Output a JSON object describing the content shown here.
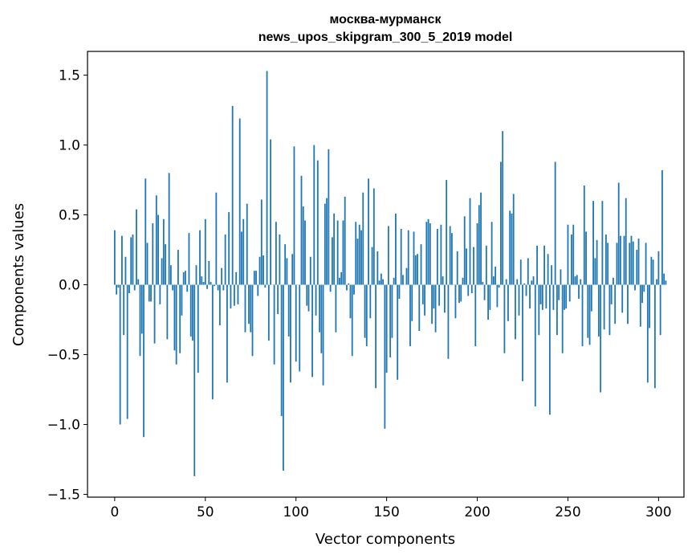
{
  "chart_data": {
    "type": "bar",
    "title_line1": "москва-мурманск",
    "title_line2": "news_upos_skipgram_300_5_2019 model",
    "xlabel": "Vector components",
    "ylabel": "Components values",
    "xlim": [
      -15,
      314
    ],
    "ylim": [
      -1.52,
      1.67
    ],
    "xticks": [
      0,
      50,
      100,
      150,
      200,
      250,
      300
    ],
    "xtick_labels": [
      "0",
      "50",
      "100",
      "150",
      "200",
      "250",
      "300"
    ],
    "yticks": [
      -1.5,
      -1.0,
      -0.5,
      0.0,
      0.5,
      1.0,
      1.5
    ],
    "ytick_labels": [
      "−1.5",
      "−1.0",
      "−0.5",
      "0.0",
      "0.5",
      "1.0",
      "1.5"
    ],
    "bar_color": "#1f77b4",
    "values": [
      0.39,
      -0.07,
      -0.02,
      -1.0,
      0.35,
      -0.36,
      0.2,
      -0.96,
      -0.06,
      0.34,
      0.36,
      -0.04,
      0.54,
      0.04,
      -0.51,
      -0.35,
      -1.09,
      0.76,
      0.3,
      -0.12,
      -0.12,
      0.44,
      -0.42,
      0.64,
      0.5,
      -0.14,
      0.19,
      0.47,
      0.29,
      -0.39,
      0.8,
      0.14,
      -0.04,
      -0.47,
      -0.57,
      0.25,
      -0.49,
      -0.22,
      0.09,
      0.1,
      -0.05,
      0.37,
      -0.37,
      -0.4,
      -1.37,
      0.14,
      -0.63,
      0.39,
      0.06,
      0.02,
      0.47,
      -0.03,
      0.17,
      0.02,
      -0.82,
      -0.01,
      0.66,
      -0.04,
      -0.29,
      0.12,
      -0.04,
      0.36,
      -0.7,
      0.52,
      -0.17,
      1.28,
      -0.15,
      0.09,
      -0.14,
      1.19,
      0.38,
      0.47,
      -0.34,
      0.58,
      -0.28,
      -0.34,
      -0.51,
      0.1,
      0.1,
      -0.08,
      0.2,
      0.61,
      0.21,
      -0.02,
      1.53,
      -0.4,
      1.04,
      0.0,
      -0.57,
      0.45,
      -0.21,
      0.36,
      -0.94,
      -1.33,
      0.29,
      0.19,
      -0.37,
      -0.7,
      0.22,
      0.99,
      -0.55,
      0.0,
      -0.62,
      0.78,
      0.56,
      0.46,
      -0.15,
      -0.19,
      0.2,
      -0.66,
      1.0,
      -0.22,
      0.89,
      -0.34,
      -0.49,
      -0.72,
      0.58,
      0.62,
      0.97,
      -0.05,
      0.34,
      0.51,
      -0.34,
      0.46,
      0.05,
      0.09,
      0.46,
      0.63,
      -0.04,
      0.01,
      -0.24,
      -0.51,
      -0.07,
      0.45,
      0.33,
      0.43,
      0.39,
      0.66,
      -0.38,
      -0.44,
      0.76,
      -0.24,
      0.27,
      0.69,
      -0.74,
      0.24,
      0.03,
      0.08,
      0.04,
      -1.03,
      -0.63,
      0.42,
      -0.52,
      -0.38,
      0.05,
      0.51,
      -0.68,
      -0.1,
      0.4,
      0.07,
      0.0,
      0.12,
      0.39,
      -0.44,
      -0.26,
      0.38,
      0.21,
      0.22,
      -0.33,
      0.29,
      -0.14,
      -0.22,
      0.45,
      0.47,
      0.44,
      -0.28,
      -0.17,
      -0.34,
      0.4,
      -0.15,
      0.43,
      0.06,
      -0.2,
      0.75,
      -0.53,
      0.42,
      0.37,
      0.0,
      -0.24,
      0.24,
      -0.13,
      -0.12,
      0.05,
      0.49,
      0.26,
      -0.08,
      0.62,
      -0.06,
      0.27,
      -0.44,
      0.44,
      0.57,
      0.66,
      0.02,
      -0.11,
      0.28,
      -0.25,
      -0.18,
      0.45,
      0.06,
      0.13,
      -0.16,
      -0.02,
      0.88,
      1.1,
      -0.49,
      0.04,
      -0.26,
      0.53,
      0.51,
      0.65,
      -0.39,
      0.04,
      -0.22,
      0.18,
      -0.69,
      0.01,
      -0.08,
      0.19,
      -0.17,
      0.03,
      0.06,
      -0.87,
      0.28,
      -0.36,
      -0.14,
      -0.18,
      0.28,
      -0.17,
      0.22,
      -0.93,
      0.14,
      -0.18,
      0.88,
      -0.36,
      -0.11,
      0.11,
      -0.49,
      -0.18,
      -0.17,
      0.43,
      -0.12,
      0.36,
      0.43,
      0.06,
      0.07,
      -0.1,
      0.04,
      -0.44,
      0.71,
      0.38,
      -0.38,
      -0.43,
      -0.19,
      0.6,
      0.19,
      0.32,
      -0.37,
      -0.77,
      0.6,
      -0.32,
      0.36,
      0.3,
      -0.36,
      -0.14,
      0.05,
      -0.28,
      0.3,
      0.73,
      0.35,
      -0.2,
      0.35,
      0.62,
      -0.28,
      0.3,
      0.35,
      0.31,
      -0.04,
      0.25,
      0.33,
      -0.3,
      -0.13,
      -0.05,
      0.3,
      -0.7,
      -0.31,
      0.2,
      0.18,
      -0.74,
      0.04,
      0.24,
      -0.36,
      0.82,
      0.08,
      0.03
    ]
  }
}
